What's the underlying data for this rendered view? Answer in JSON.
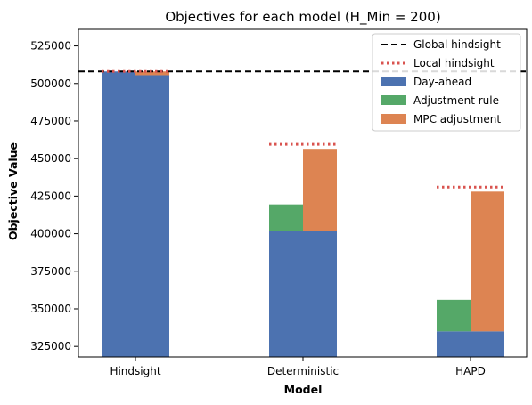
{
  "chart_data": {
    "type": "bar",
    "title": "Objectives for each model (H_Min = 200)",
    "xlabel": "Model",
    "ylabel": "Objective Value",
    "categories": [
      "Hindsight",
      "Deterministic",
      "HAPD"
    ],
    "ylim": [
      318000,
      536000
    ],
    "yticks": [
      325000,
      350000,
      375000,
      400000,
      425000,
      450000,
      475000,
      500000,
      525000
    ],
    "ytick_labels": [
      "325000",
      "350000",
      "375000",
      "400000",
      "425000",
      "450000",
      "475000",
      "500000",
      "525000"
    ],
    "grid": false,
    "legend_position": "top-right",
    "colors": {
      "day_ahead": "#4c72b0",
      "adjustment_rule": "#55a868",
      "mpc_adjustment": "#dd8452",
      "global_hindsight": "#000000",
      "local_hindsight": "#d9534f"
    },
    "series": [
      {
        "name": "Day-ahead",
        "kind": "bar",
        "position": "left",
        "color": "#4c72b0",
        "values": [
          508000,
          402000,
          335000
        ]
      },
      {
        "name": "Adjustment rule",
        "kind": "bar-stack",
        "position": "left",
        "color": "#55a868",
        "values": [
          null,
          419500,
          356000
        ]
      },
      {
        "name": "Day-ahead",
        "kind": "bar",
        "position": "right",
        "color": "#4c72b0",
        "values": [
          505500,
          402000,
          335000
        ]
      },
      {
        "name": "MPC adjustment",
        "kind": "bar-stack",
        "position": "right",
        "color": "#dd8452",
        "values": [
          508000,
          456500,
          428000
        ]
      }
    ],
    "reference_lines": [
      {
        "name": "Global hindsight",
        "style": "dashed",
        "color": "#000000",
        "value": 508000,
        "span": "all"
      },
      {
        "name": "Local hindsight",
        "style": "dotted",
        "color": "#d9534f",
        "values": [
          508000,
          459500,
          431000
        ],
        "span": "per-category"
      }
    ],
    "legend": [
      {
        "label": "Global hindsight",
        "kind": "line-dashed",
        "color": "#000000"
      },
      {
        "label": "Local hindsight",
        "kind": "line-dotted",
        "color": "#d9534f"
      },
      {
        "label": "Day-ahead",
        "kind": "patch",
        "color": "#4c72b0"
      },
      {
        "label": "Adjustment rule",
        "kind": "patch",
        "color": "#55a868"
      },
      {
        "label": "MPC adjustment",
        "kind": "patch",
        "color": "#dd8452"
      }
    ]
  }
}
